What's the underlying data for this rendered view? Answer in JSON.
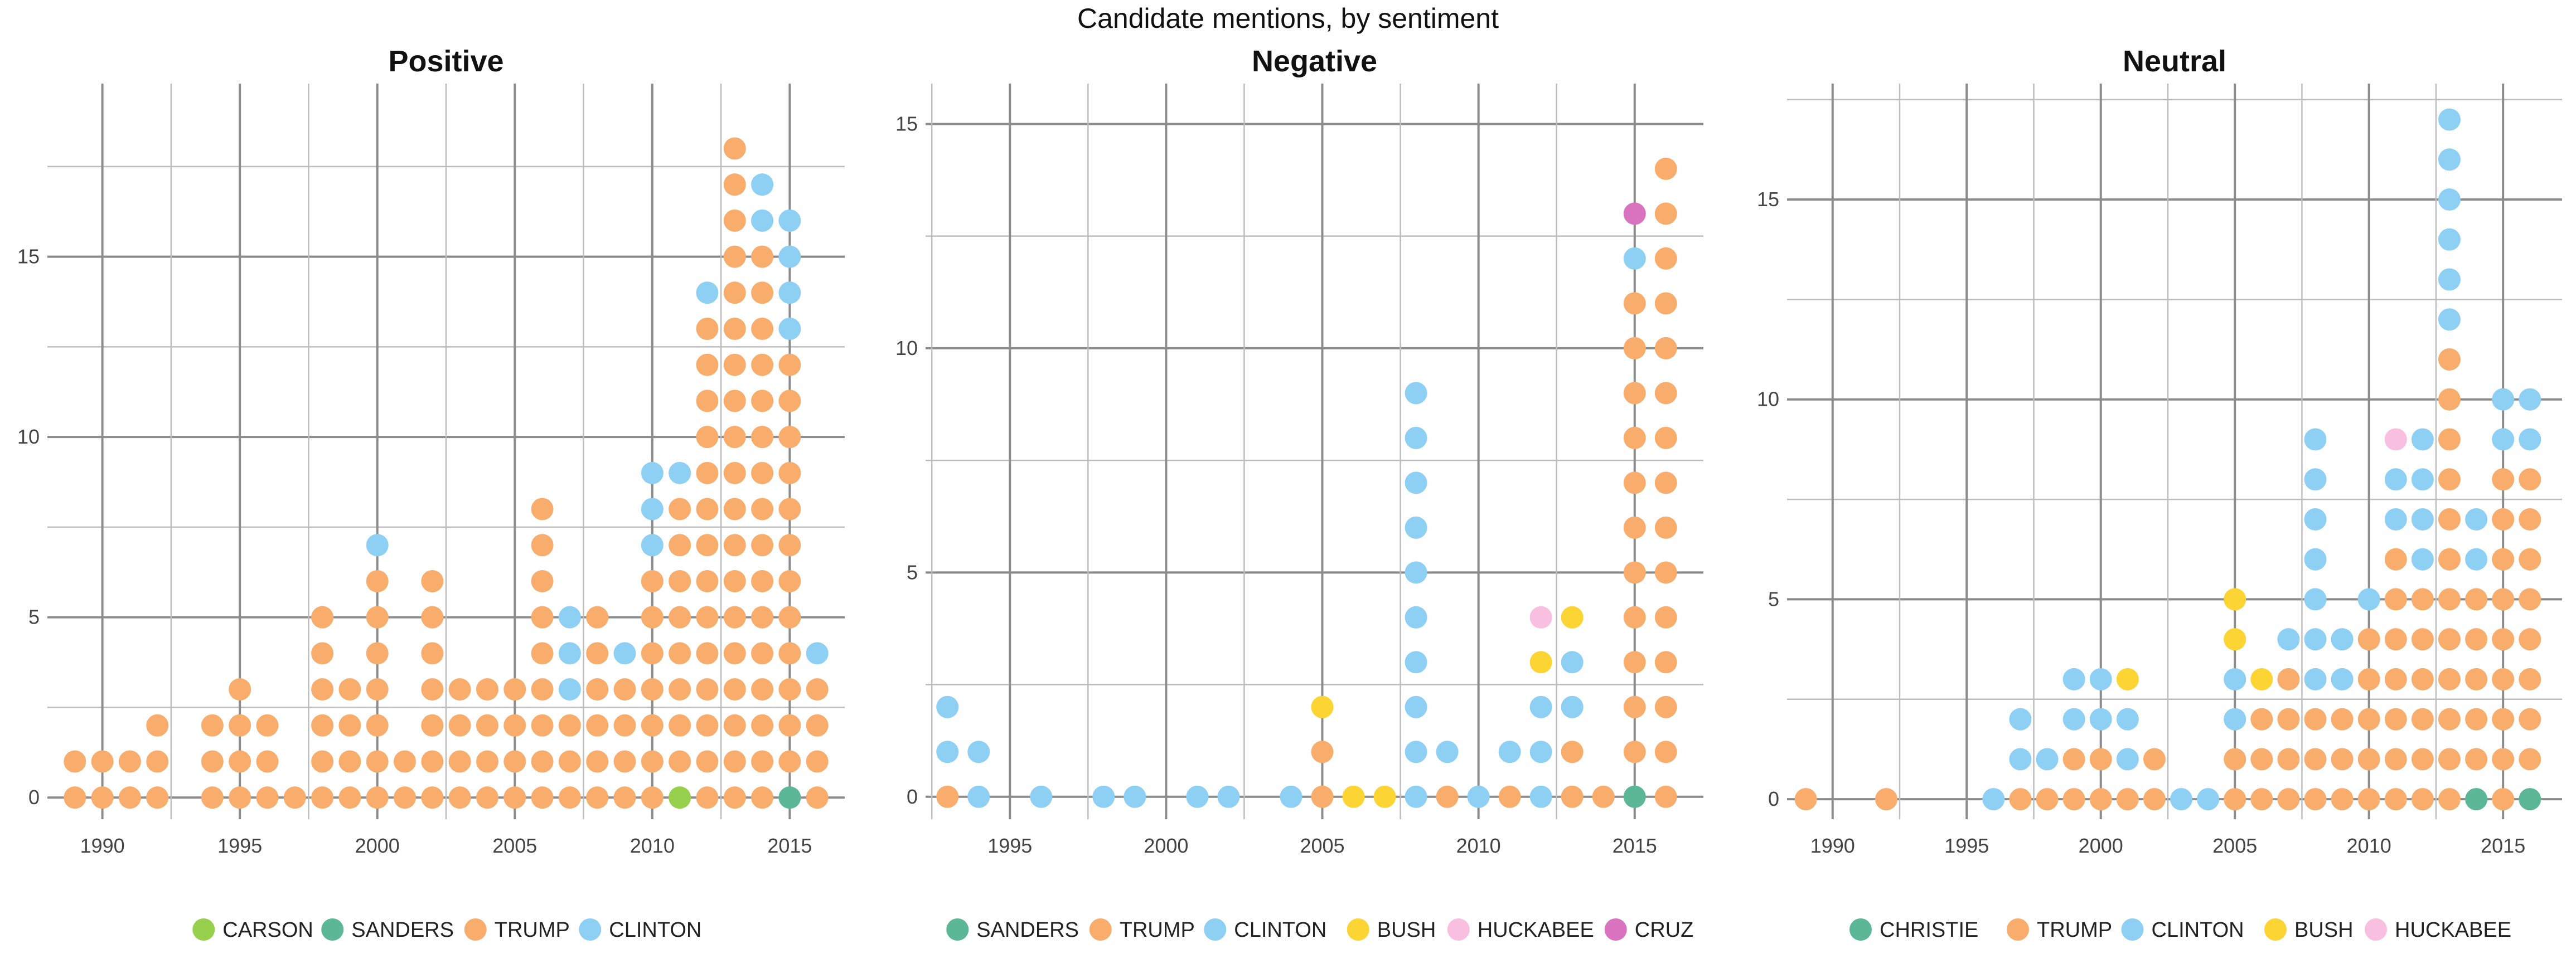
{
  "figure": {
    "title": "Candidate mentions, by sentiment"
  },
  "colors": {
    "CARSON": "#97d04d",
    "SANDERS": "#5bb796",
    "TRUMP": "#f9ad6c",
    "CLINTON": "#8ecff4",
    "BUSH": "#fcd535",
    "HUCKABEE": "#f8bfe1",
    "CRUZ": "#da73bf",
    "CHRISTIE": "#5bb796"
  },
  "chart_data": [
    {
      "type": "scatter",
      "title": "Positive",
      "xlim": [
        1988,
        2017
      ],
      "ylim": [
        -0.6,
        19.8
      ],
      "xticks": [
        1990,
        1995,
        2000,
        2005,
        2010,
        2015
      ],
      "yticks": [
        0,
        5,
        10,
        15
      ],
      "grid": true,
      "legend_position": "bottom",
      "legend": [
        "CARSON",
        "SANDERS",
        "TRUMP",
        "CLINTON"
      ],
      "columns": [
        {
          "year": 1989,
          "stack": [
            "TRUMP",
            "TRUMP"
          ]
        },
        {
          "year": 1990,
          "stack": [
            "TRUMP",
            "TRUMP"
          ]
        },
        {
          "year": 1991,
          "stack": [
            "TRUMP",
            "TRUMP"
          ]
        },
        {
          "year": 1992,
          "stack": [
            "TRUMP",
            "TRUMP",
            "TRUMP"
          ]
        },
        {
          "year": 1994,
          "stack": [
            "TRUMP",
            "TRUMP",
            "TRUMP"
          ]
        },
        {
          "year": 1995,
          "stack": [
            "TRUMP",
            "TRUMP",
            "TRUMP",
            "TRUMP"
          ]
        },
        {
          "year": 1996,
          "stack": [
            "TRUMP",
            "TRUMP",
            "TRUMP"
          ]
        },
        {
          "year": 1997,
          "stack": [
            "TRUMP"
          ]
        },
        {
          "year": 1998,
          "stack": [
            "TRUMP",
            "TRUMP",
            "TRUMP",
            "TRUMP",
            "TRUMP",
            "TRUMP"
          ]
        },
        {
          "year": 1999,
          "stack": [
            "TRUMP",
            "TRUMP",
            "TRUMP",
            "TRUMP"
          ]
        },
        {
          "year": 2000,
          "stack": [
            "TRUMP",
            "TRUMP",
            "TRUMP",
            "TRUMP",
            "TRUMP",
            "TRUMP",
            "TRUMP",
            "CLINTON"
          ]
        },
        {
          "year": 2001,
          "stack": [
            "TRUMP",
            "TRUMP"
          ]
        },
        {
          "year": 2002,
          "stack": [
            "TRUMP",
            "TRUMP",
            "TRUMP",
            "TRUMP",
            "TRUMP",
            "TRUMP",
            "TRUMP"
          ]
        },
        {
          "year": 2003,
          "stack": [
            "TRUMP",
            "TRUMP",
            "TRUMP",
            "TRUMP"
          ]
        },
        {
          "year": 2004,
          "stack": [
            "TRUMP",
            "TRUMP",
            "TRUMP",
            "TRUMP"
          ]
        },
        {
          "year": 2005,
          "stack": [
            "TRUMP",
            "TRUMP",
            "TRUMP",
            "TRUMP"
          ]
        },
        {
          "year": 2006,
          "stack": [
            "TRUMP",
            "TRUMP",
            "TRUMP",
            "TRUMP",
            "TRUMP",
            "TRUMP",
            "TRUMP",
            "TRUMP",
            "TRUMP"
          ]
        },
        {
          "year": 2007,
          "stack": [
            "TRUMP",
            "TRUMP",
            "TRUMP",
            "CLINTON",
            "CLINTON",
            "CLINTON"
          ]
        },
        {
          "year": 2008,
          "stack": [
            "TRUMP",
            "TRUMP",
            "TRUMP",
            "TRUMP",
            "TRUMP",
            "TRUMP"
          ]
        },
        {
          "year": 2009,
          "stack": [
            "TRUMP",
            "TRUMP",
            "TRUMP",
            "TRUMP",
            "CLINTON"
          ]
        },
        {
          "year": 2010,
          "stack": [
            "TRUMP",
            "TRUMP",
            "TRUMP",
            "TRUMP",
            "TRUMP",
            "TRUMP",
            "TRUMP",
            "CLINTON",
            "CLINTON",
            "CLINTON"
          ]
        },
        {
          "year": 2011,
          "stack": [
            "CARSON",
            "TRUMP",
            "TRUMP",
            "TRUMP",
            "TRUMP",
            "TRUMP",
            "TRUMP",
            "TRUMP",
            "TRUMP",
            "CLINTON"
          ]
        },
        {
          "year": 2012,
          "stack": [
            "TRUMP",
            "TRUMP",
            "TRUMP",
            "TRUMP",
            "TRUMP",
            "TRUMP",
            "TRUMP",
            "TRUMP",
            "TRUMP",
            "TRUMP",
            "TRUMP",
            "TRUMP",
            "TRUMP",
            "TRUMP",
            "CLINTON"
          ]
        },
        {
          "year": 2013,
          "stack": [
            "TRUMP",
            "TRUMP",
            "TRUMP",
            "TRUMP",
            "TRUMP",
            "TRUMP",
            "TRUMP",
            "TRUMP",
            "TRUMP",
            "TRUMP",
            "TRUMP",
            "TRUMP",
            "TRUMP",
            "TRUMP",
            "TRUMP",
            "TRUMP",
            "TRUMP",
            "TRUMP",
            "TRUMP"
          ]
        },
        {
          "year": 2014,
          "stack": [
            "TRUMP",
            "TRUMP",
            "TRUMP",
            "TRUMP",
            "TRUMP",
            "TRUMP",
            "TRUMP",
            "TRUMP",
            "TRUMP",
            "TRUMP",
            "TRUMP",
            "TRUMP",
            "TRUMP",
            "TRUMP",
            "TRUMP",
            "TRUMP",
            "CLINTON",
            "CLINTON"
          ]
        },
        {
          "year": 2015,
          "stack": [
            "SANDERS",
            "TRUMP",
            "TRUMP",
            "TRUMP",
            "TRUMP",
            "TRUMP",
            "TRUMP",
            "TRUMP",
            "TRUMP",
            "TRUMP",
            "TRUMP",
            "TRUMP",
            "TRUMP",
            "CLINTON",
            "CLINTON",
            "CLINTON",
            "CLINTON"
          ]
        },
        {
          "year": 2016,
          "stack": [
            "TRUMP",
            "TRUMP",
            "TRUMP",
            "TRUMP",
            "CLINTON"
          ]
        }
      ]
    },
    {
      "type": "scatter",
      "title": "Negative",
      "xlim": [
        1992.3,
        2017.2
      ],
      "ylim": [
        -0.5,
        15.9
      ],
      "xticks": [
        1995,
        2000,
        2005,
        2010,
        2015
      ],
      "yticks": [
        0,
        5,
        10,
        15
      ],
      "grid": true,
      "legend_position": "bottom",
      "legend": [
        "SANDERS",
        "TRUMP",
        "CLINTON",
        "BUSH",
        "HUCKABEE",
        "CRUZ"
      ],
      "columns": [
        {
          "year": 1993,
          "stack": [
            "TRUMP",
            "CLINTON",
            "CLINTON"
          ]
        },
        {
          "year": 1994,
          "stack": [
            "CLINTON",
            "CLINTON"
          ]
        },
        {
          "year": 1996,
          "stack": [
            "CLINTON"
          ]
        },
        {
          "year": 1998,
          "stack": [
            "CLINTON"
          ]
        },
        {
          "year": 1999,
          "stack": [
            "CLINTON"
          ]
        },
        {
          "year": 2001,
          "stack": [
            "CLINTON"
          ]
        },
        {
          "year": 2002,
          "stack": [
            "CLINTON"
          ]
        },
        {
          "year": 2004,
          "stack": [
            "CLINTON"
          ]
        },
        {
          "year": 2005,
          "stack": [
            "TRUMP",
            "TRUMP",
            "BUSH"
          ]
        },
        {
          "year": 2006,
          "stack": [
            "BUSH"
          ]
        },
        {
          "year": 2007,
          "stack": [
            "BUSH"
          ]
        },
        {
          "year": 2008,
          "stack": [
            "CLINTON",
            "CLINTON",
            "CLINTON",
            "CLINTON",
            "CLINTON",
            "CLINTON",
            "CLINTON",
            "CLINTON",
            "CLINTON",
            "CLINTON"
          ]
        },
        {
          "year": 2009,
          "stack": [
            "TRUMP",
            "CLINTON"
          ]
        },
        {
          "year": 2010,
          "stack": [
            "CLINTON"
          ]
        },
        {
          "year": 2011,
          "stack": [
            "TRUMP",
            "CLINTON"
          ]
        },
        {
          "year": 2012,
          "stack": [
            "CLINTON",
            "CLINTON",
            "CLINTON",
            "BUSH",
            "HUCKABEE"
          ]
        },
        {
          "year": 2013,
          "stack": [
            "TRUMP",
            "TRUMP",
            "CLINTON",
            "CLINTON",
            "BUSH"
          ]
        },
        {
          "year": 2014,
          "stack": [
            "TRUMP"
          ]
        },
        {
          "year": 2015,
          "stack": [
            "SANDERS",
            "TRUMP",
            "TRUMP",
            "TRUMP",
            "TRUMP",
            "TRUMP",
            "TRUMP",
            "TRUMP",
            "TRUMP",
            "TRUMP",
            "TRUMP",
            "TRUMP",
            "CLINTON",
            "CRUZ"
          ]
        },
        {
          "year": 2016,
          "stack": [
            "TRUMP",
            "TRUMP",
            "TRUMP",
            "TRUMP",
            "TRUMP",
            "TRUMP",
            "TRUMP",
            "TRUMP",
            "TRUMP",
            "TRUMP",
            "TRUMP",
            "TRUMP",
            "TRUMP",
            "TRUMP",
            "TRUMP"
          ]
        }
      ]
    },
    {
      "type": "scatter",
      "title": "Neutral",
      "xlim": [
        1988.3,
        2017.2
      ],
      "ylim": [
        -0.5,
        17.9
      ],
      "xticks": [
        1990,
        1995,
        2000,
        2005,
        2010,
        2015
      ],
      "yticks": [
        0,
        5,
        10,
        15
      ],
      "grid": true,
      "legend_position": "bottom",
      "legend": [
        "CHRISTIE",
        "TRUMP",
        "CLINTON",
        "BUSH",
        "HUCKABEE"
      ],
      "columns": [
        {
          "year": 1989,
          "stack": [
            "TRUMP"
          ]
        },
        {
          "year": 1992,
          "stack": [
            "TRUMP"
          ]
        },
        {
          "year": 1996,
          "stack": [
            "CLINTON"
          ]
        },
        {
          "year": 1997,
          "stack": [
            "TRUMP",
            "CLINTON",
            "CLINTON"
          ]
        },
        {
          "year": 1998,
          "stack": [
            "TRUMP",
            "CLINTON"
          ]
        },
        {
          "year": 1999,
          "stack": [
            "TRUMP",
            "TRUMP",
            "CLINTON",
            "CLINTON"
          ]
        },
        {
          "year": 2000,
          "stack": [
            "TRUMP",
            "TRUMP",
            "CLINTON",
            "CLINTON"
          ]
        },
        {
          "year": 2001,
          "stack": [
            "TRUMP",
            "CLINTON",
            "CLINTON",
            "BUSH"
          ]
        },
        {
          "year": 2002,
          "stack": [
            "TRUMP",
            "TRUMP"
          ]
        },
        {
          "year": 2003,
          "stack": [
            "CLINTON"
          ]
        },
        {
          "year": 2004,
          "stack": [
            "CLINTON"
          ]
        },
        {
          "year": 2005,
          "stack": [
            "TRUMP",
            "TRUMP",
            "CLINTON",
            "CLINTON",
            "BUSH",
            "BUSH"
          ]
        },
        {
          "year": 2006,
          "stack": [
            "TRUMP",
            "TRUMP",
            "TRUMP",
            "BUSH"
          ]
        },
        {
          "year": 2007,
          "stack": [
            "TRUMP",
            "TRUMP",
            "TRUMP",
            "TRUMP",
            "CLINTON"
          ]
        },
        {
          "year": 2008,
          "stack": [
            "TRUMP",
            "TRUMP",
            "TRUMP",
            "CLINTON",
            "CLINTON",
            "CLINTON",
            "CLINTON",
            "CLINTON",
            "CLINTON",
            "CLINTON"
          ]
        },
        {
          "year": 2009,
          "stack": [
            "TRUMP",
            "TRUMP",
            "TRUMP",
            "CLINTON",
            "CLINTON"
          ]
        },
        {
          "year": 2010,
          "stack": [
            "TRUMP",
            "TRUMP",
            "TRUMP",
            "TRUMP",
            "TRUMP",
            "CLINTON"
          ]
        },
        {
          "year": 2011,
          "stack": [
            "TRUMP",
            "TRUMP",
            "TRUMP",
            "TRUMP",
            "TRUMP",
            "TRUMP",
            "TRUMP",
            "CLINTON",
            "CLINTON",
            "HUCKABEE"
          ]
        },
        {
          "year": 2012,
          "stack": [
            "TRUMP",
            "TRUMP",
            "TRUMP",
            "TRUMP",
            "TRUMP",
            "TRUMP",
            "CLINTON",
            "CLINTON",
            "CLINTON",
            "CLINTON"
          ]
        },
        {
          "year": 2013,
          "stack": [
            "TRUMP",
            "TRUMP",
            "TRUMP",
            "TRUMP",
            "TRUMP",
            "TRUMP",
            "TRUMP",
            "TRUMP",
            "TRUMP",
            "TRUMP",
            "TRUMP",
            "TRUMP",
            "CLINTON",
            "CLINTON",
            "CLINTON",
            "CLINTON",
            "CLINTON",
            "CLINTON"
          ]
        },
        {
          "year": 2014,
          "stack": [
            "CHRISTIE",
            "TRUMP",
            "TRUMP",
            "TRUMP",
            "TRUMP",
            "TRUMP",
            "CLINTON",
            "CLINTON"
          ]
        },
        {
          "year": 2015,
          "stack": [
            "TRUMP",
            "TRUMP",
            "TRUMP",
            "TRUMP",
            "TRUMP",
            "TRUMP",
            "TRUMP",
            "TRUMP",
            "TRUMP",
            "CLINTON",
            "CLINTON"
          ]
        },
        {
          "year": 2016,
          "stack": [
            "CHRISTIE",
            "TRUMP",
            "TRUMP",
            "TRUMP",
            "TRUMP",
            "TRUMP",
            "TRUMP",
            "TRUMP",
            "TRUMP",
            "CLINTON",
            "CLINTON"
          ]
        }
      ]
    }
  ]
}
